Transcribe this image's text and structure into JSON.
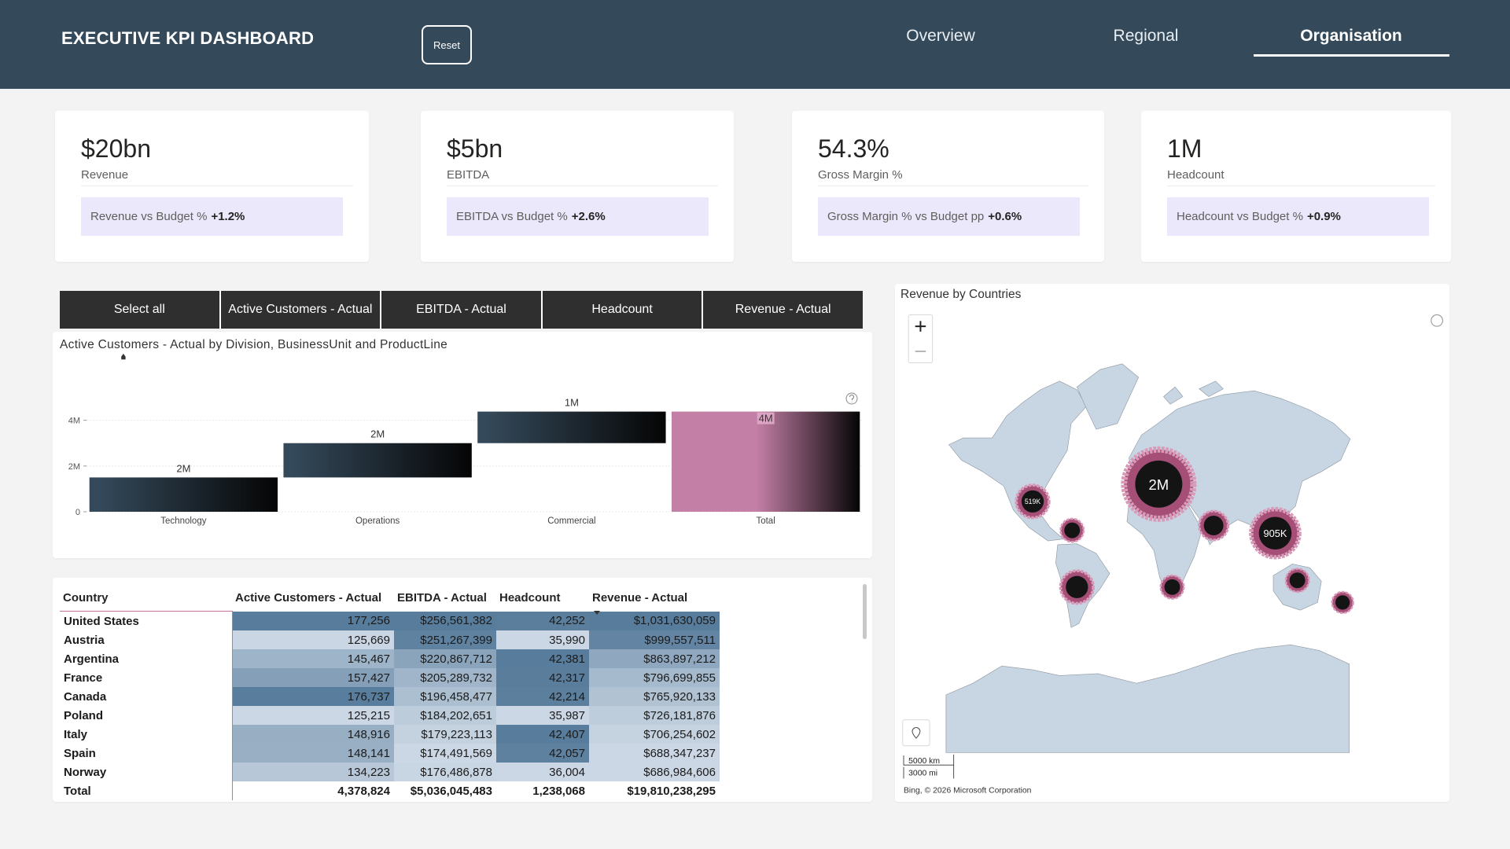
{
  "header": {
    "title": "EXECUTIVE KPI DASHBOARD",
    "reset": "Reset",
    "tabs": [
      "Overview",
      "Regional",
      "Organisation"
    ],
    "active_tab": 2
  },
  "kpis": [
    {
      "value": "$20bn",
      "label": "Revenue",
      "compare_label": "Revenue vs Budget %",
      "compare_value": "+1.2%"
    },
    {
      "value": "$5bn",
      "label": "EBITDA",
      "compare_label": "EBITDA vs Budget %",
      "compare_value": "+2.6%"
    },
    {
      "value": "54.3%",
      "label": "Gross Margin %",
      "compare_label": "Gross Margin % vs Budget pp",
      "compare_value": "+0.6%"
    },
    {
      "value": "1M",
      "label": "Headcount",
      "compare_label": "Headcount vs Budget %",
      "compare_value": "+0.9%"
    }
  ],
  "slicer": {
    "options": [
      "Select all",
      "Active Customers - Actual",
      "EBITDA - Actual",
      "Headcount",
      "Revenue - Actual"
    ]
  },
  "chart_data": {
    "type": "waterfall",
    "title": "Active Customers - Actual by Division, BusinessUnit and ProductLine",
    "categories": [
      "Technology",
      "Operations",
      "Commercial",
      "Total"
    ],
    "values": [
      1500000,
      1500000,
      1380000,
      4380000
    ],
    "value_labels": [
      "2M",
      "2M",
      "1M",
      "4M"
    ],
    "ylim": [
      0,
      4400000
    ],
    "yticks": [
      0,
      {
        "value": 2000000,
        "label": "2M"
      },
      {
        "value": 4000000,
        "label": "4M"
      }
    ],
    "grid": true,
    "color": "#34495a",
    "total_color": "#c47fa6"
  },
  "table": {
    "columns": [
      "Country",
      "Active Customers - Actual",
      "EBITDA - Actual",
      "Headcount",
      "Revenue - Actual"
    ],
    "rows": [
      [
        "United States",
        "177,256",
        "$256,561,382",
        "42,252",
        "$1,031,630,059"
      ],
      [
        "Austria",
        "125,669",
        "$251,267,399",
        "35,990",
        "$999,557,511"
      ],
      [
        "Argentina",
        "145,467",
        "$220,867,712",
        "42,381",
        "$863,897,212"
      ],
      [
        "France",
        "157,427",
        "$205,289,732",
        "42,317",
        "$796,699,855"
      ],
      [
        "Canada",
        "176,737",
        "$196,458,477",
        "42,214",
        "$765,920,133"
      ],
      [
        "Poland",
        "125,215",
        "$184,202,651",
        "35,987",
        "$726,181,876"
      ],
      [
        "Italy",
        "148,916",
        "$179,223,113",
        "42,407",
        "$706,254,602"
      ],
      [
        "Spain",
        "148,141",
        "$174,491,569",
        "42,057",
        "$688,347,237"
      ],
      [
        "Norway",
        "134,223",
        "$176,486,878",
        "36,004",
        "$686,984,606"
      ]
    ],
    "total": [
      "Total",
      "4,378,824",
      "$5,036,045,483",
      "1,238,068",
      "$19,810,238,295"
    ]
  },
  "map": {
    "title": "Revenue by Countries",
    "bubble_labels": [
      "519K",
      "2M",
      "905K"
    ],
    "scale_km": "5000 km",
    "scale_mi": "3000 mi",
    "attribution": "Bing, © 2026 Microsoft Corporation"
  }
}
